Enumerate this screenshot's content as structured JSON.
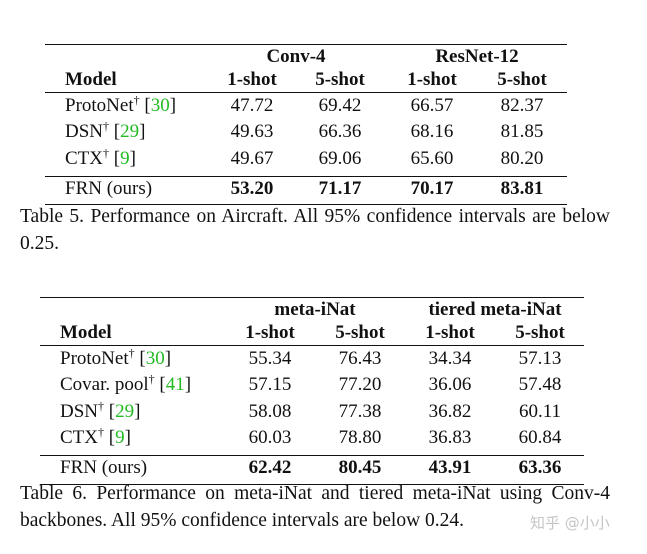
{
  "tables": [
    {
      "groups": [
        "Conv-4",
        "ResNet-12"
      ],
      "columns": [
        "Model",
        "1-shot",
        "5-shot",
        "1-shot",
        "5-shot"
      ],
      "rows": [
        {
          "name": "ProtoNet",
          "mark": "†",
          "cite": [
            "[",
            "30",
            "]"
          ],
          "values": [
            "47.72",
            "69.42",
            "66.57",
            "82.37"
          ]
        },
        {
          "name": "DSN",
          "mark": "†",
          "cite": [
            "[",
            "29",
            "]"
          ],
          "values": [
            "49.63",
            "66.36",
            "68.16",
            "81.85"
          ]
        },
        {
          "name": "CTX",
          "mark": "†",
          "cite": [
            "[",
            "9",
            "]"
          ],
          "values": [
            "49.67",
            "69.06",
            "65.60",
            "80.20"
          ]
        },
        {
          "name": "FRN (ours)",
          "bold": true,
          "values": [
            "53.20",
            "71.17",
            "70.17",
            "83.81"
          ]
        }
      ],
      "caption": "Table 5. Performance on Aircraft. All 95% confidence intervals are below 0.25."
    },
    {
      "groups": [
        "meta-iNat",
        "tiered meta-iNat"
      ],
      "columns": [
        "Model",
        "1-shot",
        "5-shot",
        "1-shot",
        "5-shot"
      ],
      "rows": [
        {
          "name": "ProtoNet",
          "mark": "†",
          "cite": [
            "[",
            "30",
            "]"
          ],
          "values": [
            "55.34",
            "76.43",
            "34.34",
            "57.13"
          ]
        },
        {
          "name": "Covar. pool",
          "mark": "†",
          "cite": [
            "[",
            "41",
            "]"
          ],
          "values": [
            "57.15",
            "77.20",
            "36.06",
            "57.48"
          ]
        },
        {
          "name": "DSN",
          "mark": "†",
          "cite": [
            "[",
            "29",
            "]"
          ],
          "values": [
            "58.08",
            "77.38",
            "36.82",
            "60.11"
          ]
        },
        {
          "name": "CTX",
          "mark": "†",
          "cite": [
            "[",
            "9",
            "]"
          ],
          "values": [
            "60.03",
            "78.80",
            "36.83",
            "60.84"
          ]
        },
        {
          "name": "FRN (ours)",
          "bold": true,
          "values": [
            "62.42",
            "80.45",
            "43.91",
            "63.36"
          ]
        }
      ],
      "caption": "Table 6. Performance on meta-iNat and tiered meta-iNat using Conv-4 backbones. All 95% confidence intervals are below 0.24."
    }
  ],
  "watermark": "知乎 @小小"
}
